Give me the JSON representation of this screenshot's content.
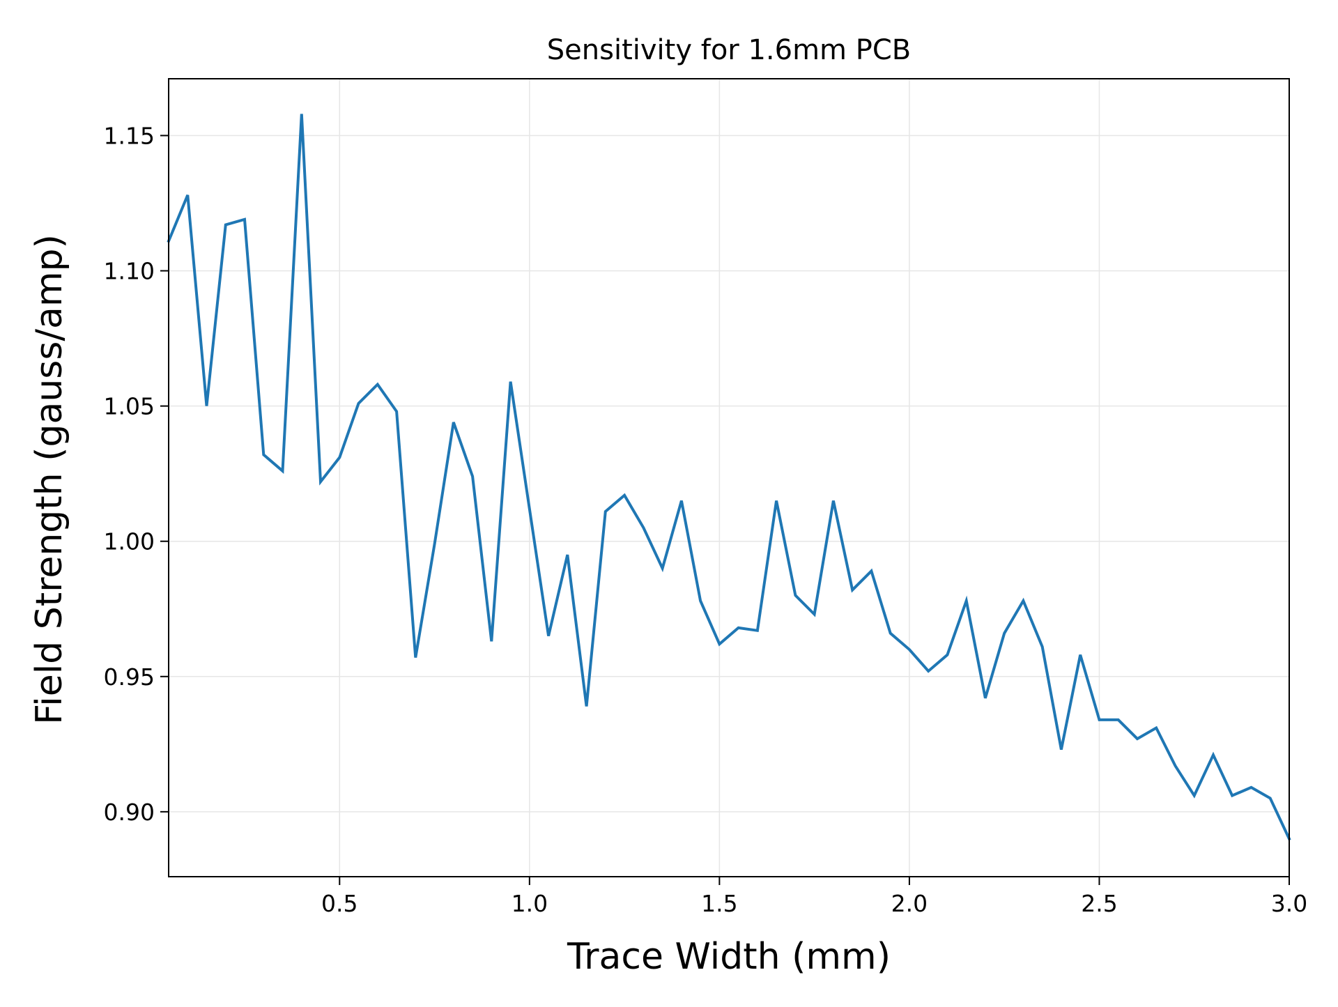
{
  "chart_data": {
    "type": "line",
    "title": "Sensitivity for 1.6mm PCB",
    "xlabel": "Trace Width (mm)",
    "ylabel": "Field Strength (gauss/amp)",
    "xlim": [
      0.05,
      3.0
    ],
    "ylim": [
      0.876,
      1.171
    ],
    "grid": true,
    "xticks": [
      0.5,
      1.0,
      1.5,
      2.0,
      2.5,
      3.0
    ],
    "xtick_labels": [
      "0.5",
      "1.0",
      "1.5",
      "2.0",
      "2.5",
      "3.0"
    ],
    "yticks": [
      0.9,
      0.95,
      1.0,
      1.05,
      1.1,
      1.15
    ],
    "ytick_labels": [
      "0.90",
      "0.95",
      "1.00",
      "1.05",
      "1.10",
      "1.15"
    ],
    "series": [
      {
        "color": "#1f77b4",
        "x": [
          0.05,
          0.1,
          0.15,
          0.2,
          0.25,
          0.3,
          0.35,
          0.4,
          0.45,
          0.5,
          0.55,
          0.6,
          0.65,
          0.7,
          0.75,
          0.8,
          0.85,
          0.9,
          0.95,
          1.0,
          1.05,
          1.1,
          1.15,
          1.2,
          1.25,
          1.3,
          1.35,
          1.4,
          1.45,
          1.5,
          1.55,
          1.6,
          1.65,
          1.7,
          1.75,
          1.8,
          1.85,
          1.9,
          1.95,
          2.0,
          2.05,
          2.1,
          2.15,
          2.2,
          2.25,
          2.3,
          2.35,
          2.4,
          2.45,
          2.5,
          2.55,
          2.6,
          2.65,
          2.7,
          2.75,
          2.8,
          2.85,
          2.9,
          2.95,
          3.0
        ],
        "y": [
          1.111,
          1.128,
          1.05,
          1.117,
          1.119,
          1.032,
          1.026,
          1.158,
          1.022,
          1.031,
          1.051,
          1.058,
          1.048,
          0.957,
          0.999,
          1.044,
          1.024,
          0.963,
          1.059,
          1.012,
          0.965,
          0.995,
          0.939,
          1.011,
          1.017,
          1.005,
          0.99,
          1.015,
          0.978,
          0.962,
          0.968,
          0.967,
          1.015,
          0.98,
          0.973,
          1.015,
          0.982,
          0.989,
          0.966,
          0.96,
          0.952,
          0.958,
          0.978,
          0.942,
          0.966,
          0.978,
          0.961,
          0.923,
          0.958,
          0.934,
          0.934,
          0.927,
          0.931,
          0.917,
          0.906,
          0.921,
          0.906,
          0.909,
          0.905,
          0.89
        ]
      }
    ]
  }
}
